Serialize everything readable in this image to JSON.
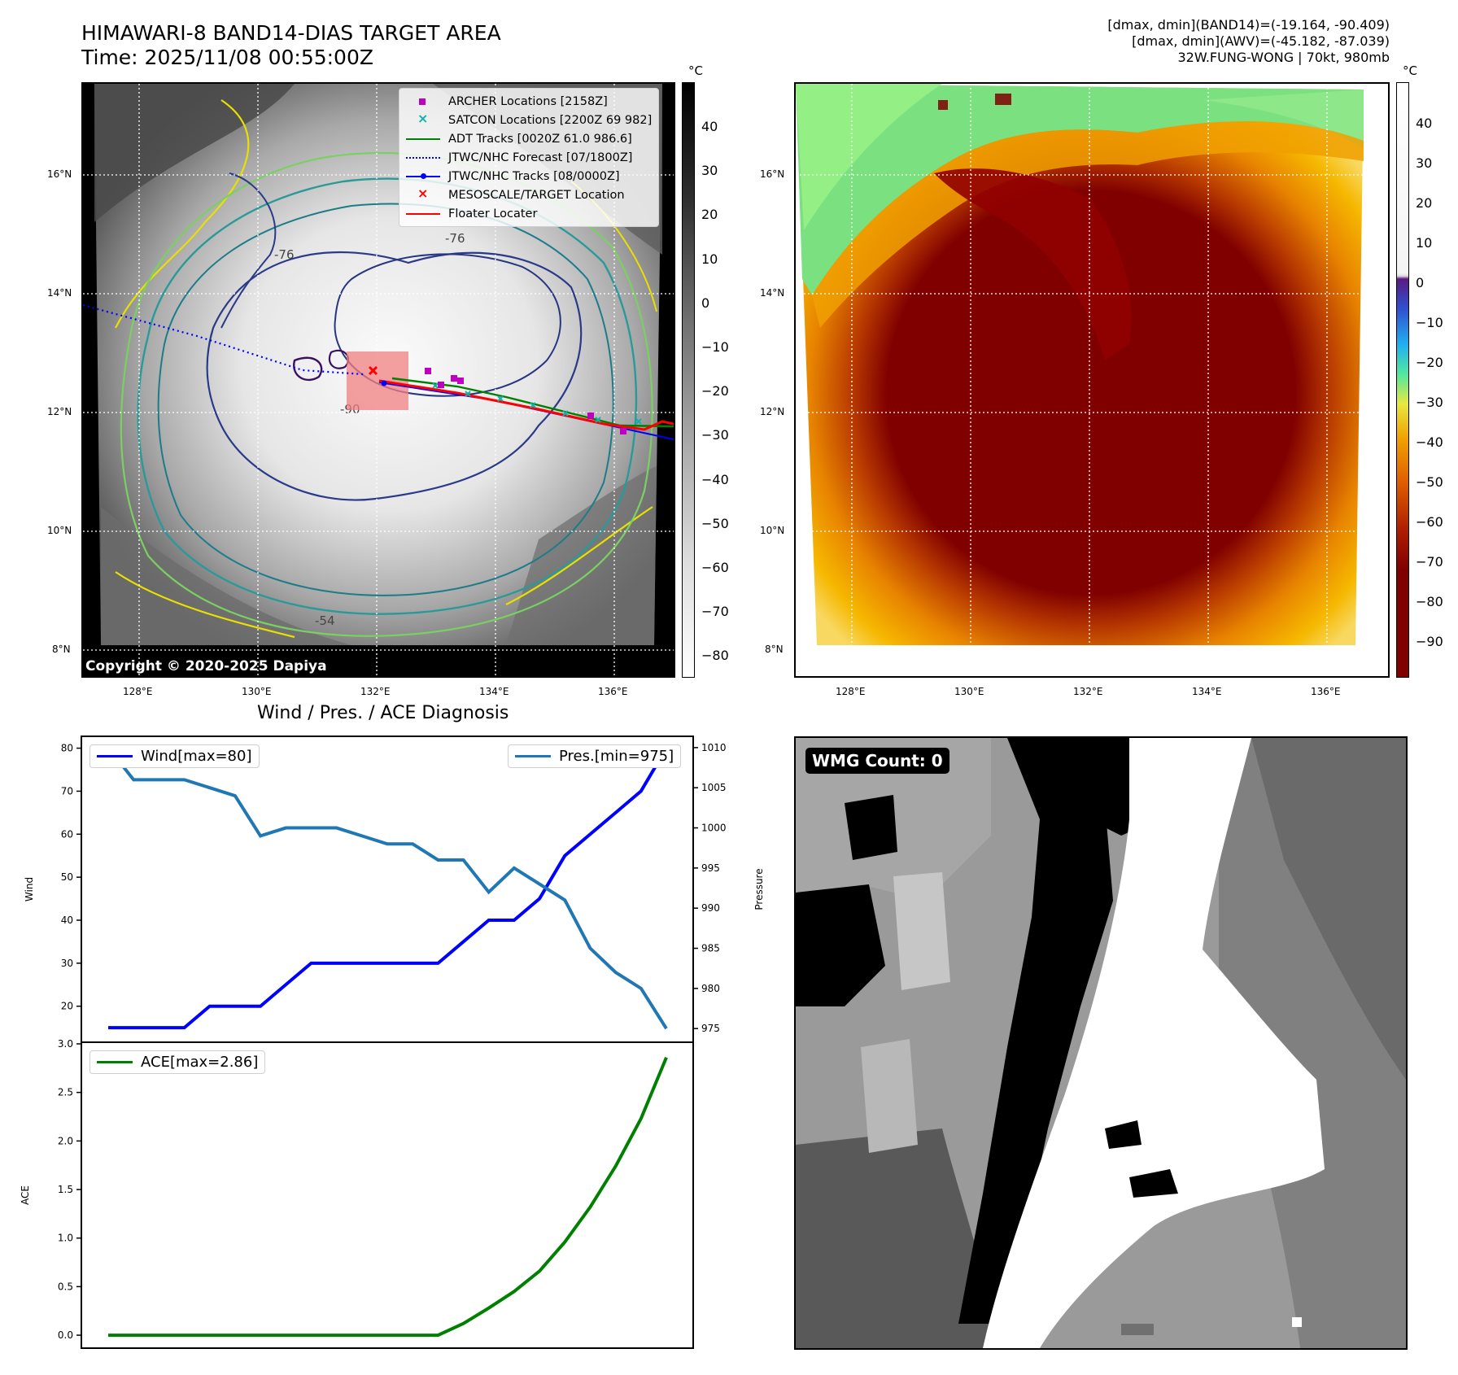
{
  "header": {
    "title_line1": "HIMAWARI-8 BAND14-DIAS TARGET AREA",
    "title_line2": "Time: 2025/11/08 00:55:00Z",
    "info_line1": "[dmax, dmin](BAND14)=(-19.164, -90.409)",
    "info_line2": "[dmax, dmin](AWV)=(-45.182, -87.039)",
    "info_line3": "32W.FUNG-WONG | 70kt, 980mb"
  },
  "map": {
    "lat_labels": [
      "16°N",
      "14°N",
      "12°N",
      "10°N",
      "8°N"
    ],
    "lon_labels": [
      "128°E",
      "130°E",
      "132°E",
      "134°E",
      "136°E"
    ],
    "copyright": "Copyright © 2020-2025 Dapiya",
    "contour_labels": [
      "-76",
      "-90",
      "-54",
      "-76"
    ],
    "legend": [
      {
        "label": "ARCHER Locations [2158Z]",
        "color": "#c000c0",
        "marker": "square"
      },
      {
        "label": "SATCON Locations [2200Z 69 982]",
        "color": "#10b0a8",
        "marker": "x"
      },
      {
        "label": "ADT Tracks [0020Z 61.0 986.6]",
        "color": "#008000",
        "marker": "line"
      },
      {
        "label": "JTWC/NHC Forecast [07/1800Z]",
        "color": "#0000ff",
        "marker": "dotted"
      },
      {
        "label": "JTWC/NHC Tracks [08/0000Z]",
        "color": "#0000ff",
        "marker": "line-dot"
      },
      {
        "label": "MESOSCALE/TARGET Location",
        "color": "#ff0000",
        "marker": "x"
      },
      {
        "label": "Floater Locater",
        "color": "#ff0000",
        "marker": "line"
      }
    ]
  },
  "colorbar_gray": {
    "unit": "°C",
    "ticks": [
      "40",
      "30",
      "20",
      "10",
      "0",
      "−10",
      "−20",
      "−30",
      "−40",
      "−50",
      "−60",
      "−70",
      "−80"
    ]
  },
  "colorbar_color": {
    "unit": "°C",
    "ticks": [
      "40",
      "30",
      "20",
      "10",
      "0",
      "−10",
      "−20",
      "−30",
      "−40",
      "−50",
      "−60",
      "−70",
      "−80",
      "−90"
    ]
  },
  "diagnosis": {
    "title": "Wind / Pres. / ACE Diagnosis",
    "wind_ylabel": "Wind",
    "pres_ylabel": "Pressure",
    "ace_ylabel": "ACE",
    "wind_legend": "Wind[max=80]",
    "pres_legend": "Pres.[min=975]",
    "ace_legend": "ACE[max=2.86]",
    "wind_ticks": [
      "80",
      "70",
      "60",
      "50",
      "40",
      "30",
      "20"
    ],
    "pres_ticks": [
      "1010",
      "1005",
      "1000",
      "995",
      "990",
      "985",
      "980",
      "975"
    ],
    "ace_ticks": [
      "3.0",
      "2.5",
      "2.0",
      "1.5",
      "1.0",
      "0.5",
      "0.0"
    ]
  },
  "wmg": {
    "label": "WMG Count: 0"
  },
  "chart_data": [
    {
      "type": "line",
      "title": "Wind / Pres. / ACE Diagnosis",
      "x": [
        0,
        1,
        2,
        3,
        4,
        5,
        6,
        7,
        8,
        9,
        10,
        11,
        12,
        13,
        14,
        15,
        16,
        17,
        18,
        19,
        20,
        21,
        22
      ],
      "series": [
        {
          "name": "Wind[max=80]",
          "axis": "left",
          "color": "#0000ff",
          "values": [
            15,
            15,
            15,
            15,
            20,
            20,
            20,
            25,
            30,
            30,
            30,
            30,
            30,
            30,
            35,
            40,
            40,
            45,
            55,
            60,
            65,
            70,
            80
          ]
        },
        {
          "name": "Pres.[min=975]",
          "axis": "right",
          "color": "#1f77b4",
          "values": [
            1010,
            1006,
            1006,
            1006,
            1005,
            1004,
            999,
            1000,
            1000,
            1000,
            999,
            998,
            998,
            996,
            996,
            992,
            995,
            993,
            991,
            985,
            982,
            980,
            975
          ]
        }
      ],
      "ylim_left": [
        12,
        82
      ],
      "ylim_right": [
        973.5,
        1011
      ]
    },
    {
      "type": "line",
      "series": [
        {
          "name": "ACE[max=2.86]",
          "color": "#008000",
          "values": [
            0,
            0,
            0,
            0,
            0,
            0,
            0,
            0,
            0,
            0,
            0,
            0,
            0,
            0,
            0.12,
            0.28,
            0.45,
            0.66,
            0.96,
            1.32,
            1.74,
            2.23,
            2.86
          ]
        }
      ],
      "x": [
        0,
        1,
        2,
        3,
        4,
        5,
        6,
        7,
        8,
        9,
        10,
        11,
        12,
        13,
        14,
        15,
        16,
        17,
        18,
        19,
        20,
        21,
        22
      ],
      "ylim": [
        -0.1,
        3.0
      ]
    }
  ]
}
